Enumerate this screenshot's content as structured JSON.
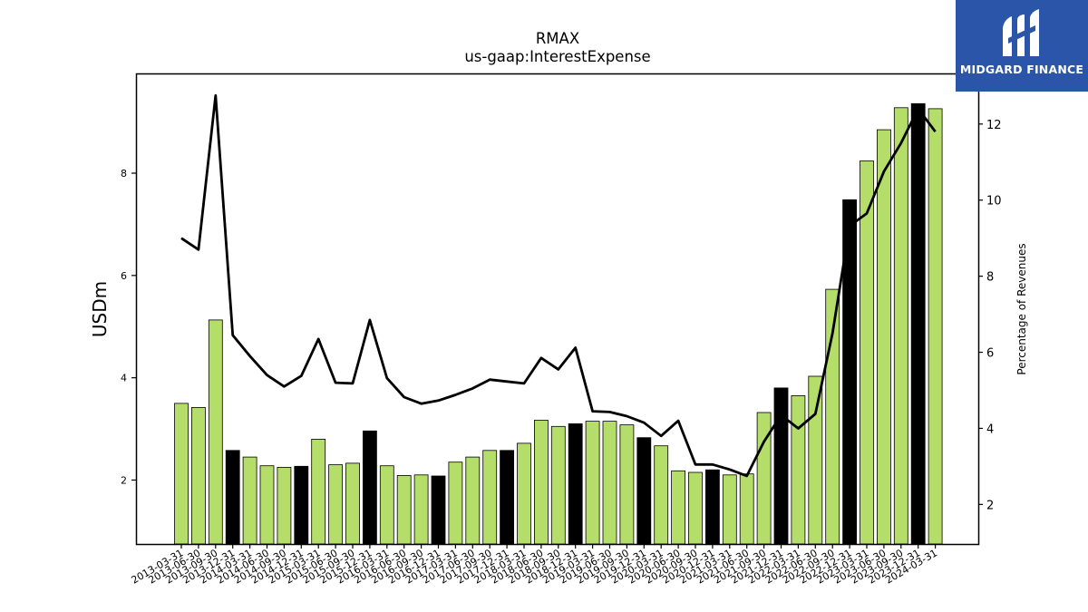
{
  "brand": {
    "name": "MIDGARD FINANCE",
    "icon": "midgard-logo-icon",
    "bg_color": "#2a55a8"
  },
  "chart_data": {
    "type": "bar",
    "title": "RMAX",
    "subtitle": "us-gaap:InterestExpense",
    "ylabel": "USDm",
    "y2label": "Percentage of Revenues",
    "ylim": [
      0.75,
      9.95
    ],
    "y2lim": [
      0.96,
      13.33
    ],
    "yticks": [
      2,
      4,
      6,
      8
    ],
    "y2ticks": [
      2,
      4,
      6,
      8,
      10,
      12
    ],
    "bar_color": "#b5dd6a",
    "bar_color_q4": "#000000",
    "line_color": "#000000",
    "categories": [
      "2013-03-31",
      "2013-06-30",
      "2013-09-30",
      "2013-12-31",
      "2014-03-31",
      "2014-06-30",
      "2014-09-30",
      "2014-12-31",
      "2015-03-31",
      "2015-06-30",
      "2015-09-30",
      "2015-12-31",
      "2016-03-31",
      "2016-06-30",
      "2016-09-30",
      "2016-12-31",
      "2017-03-31",
      "2017-06-30",
      "2017-09-30",
      "2017-12-31",
      "2018-03-31",
      "2018-06-30",
      "2018-09-30",
      "2018-12-31",
      "2019-03-31",
      "2019-06-30",
      "2019-09-30",
      "2019-12-31",
      "2020-03-31",
      "2020-06-30",
      "2020-09-30",
      "2020-12-31",
      "2021-03-31",
      "2021-06-30",
      "2021-09-30",
      "2021-12-31",
      "2022-03-31",
      "2022-06-30",
      "2022-09-30",
      "2022-12-31",
      "2023-03-31",
      "2023-06-30",
      "2023-09-30",
      "2023-12-31",
      "2024-03-31"
    ],
    "series": [
      {
        "type": "bar",
        "axis": "left",
        "values": [
          3.5,
          3.42,
          5.13,
          2.58,
          2.45,
          2.28,
          2.25,
          2.27,
          2.8,
          2.3,
          2.33,
          2.96,
          2.28,
          2.09,
          2.1,
          2.08,
          2.35,
          2.45,
          2.58,
          2.58,
          2.72,
          3.17,
          3.05,
          3.1,
          3.15,
          3.15,
          3.08,
          2.83,
          2.67,
          2.18,
          2.15,
          2.2,
          2.1,
          2.12,
          3.32,
          3.8,
          3.65,
          4.03,
          5.73,
          7.48,
          8.24,
          8.85,
          9.28,
          9.36,
          9.26
        ]
      },
      {
        "type": "line",
        "axis": "right",
        "values": [
          9.0,
          8.7,
          12.75,
          6.45,
          5.9,
          5.4,
          5.1,
          5.38,
          6.35,
          5.2,
          5.18,
          6.85,
          5.32,
          4.82,
          4.65,
          4.73,
          4.88,
          5.05,
          5.28,
          5.23,
          5.18,
          5.85,
          5.55,
          6.12,
          4.45,
          4.43,
          4.32,
          4.15,
          3.8,
          4.2,
          3.05,
          3.05,
          2.92,
          2.75,
          3.65,
          4.35,
          4.0,
          4.38,
          6.5,
          9.32,
          9.65,
          10.75,
          11.5,
          12.4,
          11.8
        ]
      }
    ]
  }
}
